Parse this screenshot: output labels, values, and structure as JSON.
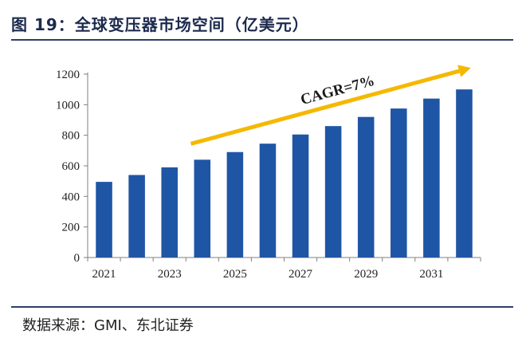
{
  "header": {
    "title": "图 19：全球变压器市场空间（亿美元）"
  },
  "footer": {
    "source": "数据来源：GMI、东北证券"
  },
  "colors": {
    "bar": "#1f55a5",
    "arrow": "#f5b800",
    "rule": "#2c3f6a"
  },
  "chart_data": {
    "type": "bar",
    "x": [
      2021,
      2022,
      2023,
      2024,
      2025,
      2026,
      2027,
      2028,
      2029,
      2030,
      2031,
      2032
    ],
    "values": [
      495,
      540,
      590,
      640,
      690,
      745,
      805,
      860,
      920,
      975,
      1040,
      1100
    ],
    "x_tick_labels": [
      "2021",
      "2023",
      "2025",
      "2027",
      "2029",
      "2031"
    ],
    "y_ticks": [
      0,
      200,
      400,
      600,
      800,
      1000,
      1200
    ],
    "ylim": [
      0,
      1200
    ],
    "title": "图 19：全球变压器市场空间（亿美元）",
    "xlabel": "",
    "ylabel": "",
    "grid": false,
    "legend": "none",
    "annotation": {
      "text": "CAGR=7%",
      "type": "arrow",
      "from_x": 2024,
      "to_x": 2032
    }
  }
}
